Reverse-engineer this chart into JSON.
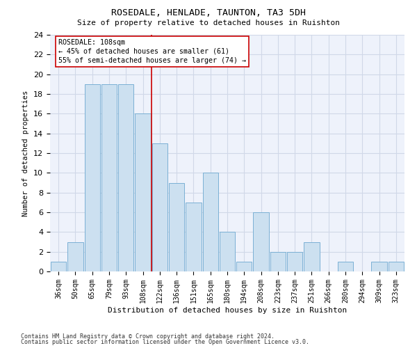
{
  "title1": "ROSEDALE, HENLADE, TAUNTON, TA3 5DH",
  "title2": "Size of property relative to detached houses in Ruishton",
  "xlabel": "Distribution of detached houses by size in Ruishton",
  "ylabel": "Number of detached properties",
  "categories": [
    "36sqm",
    "50sqm",
    "65sqm",
    "79sqm",
    "93sqm",
    "108sqm",
    "122sqm",
    "136sqm",
    "151sqm",
    "165sqm",
    "180sqm",
    "194sqm",
    "208sqm",
    "223sqm",
    "237sqm",
    "251sqm",
    "266sqm",
    "280sqm",
    "294sqm",
    "309sqm",
    "323sqm"
  ],
  "values": [
    1,
    3,
    19,
    19,
    19,
    16,
    13,
    9,
    7,
    10,
    4,
    1,
    6,
    2,
    2,
    3,
    0,
    1,
    0,
    1,
    1
  ],
  "bar_color": "#cce0f0",
  "bar_edge_color": "#7ab0d4",
  "highlight_index": 5,
  "highlight_color": "#cc0000",
  "annotation_line1": "ROSEDALE: 108sqm",
  "annotation_line2": "← 45% of detached houses are smaller (61)",
  "annotation_line3": "55% of semi-detached houses are larger (74) →",
  "annotation_box_color": "#ffffff",
  "annotation_box_edge": "#cc0000",
  "ylim": [
    0,
    24
  ],
  "yticks": [
    0,
    2,
    4,
    6,
    8,
    10,
    12,
    14,
    16,
    18,
    20,
    22,
    24
  ],
  "grid_color": "#d0d8e8",
  "background_color": "#eef2fb",
  "footer_line1": "Contains HM Land Registry data © Crown copyright and database right 2024.",
  "footer_line2": "Contains public sector information licensed under the Open Government Licence v3.0."
}
